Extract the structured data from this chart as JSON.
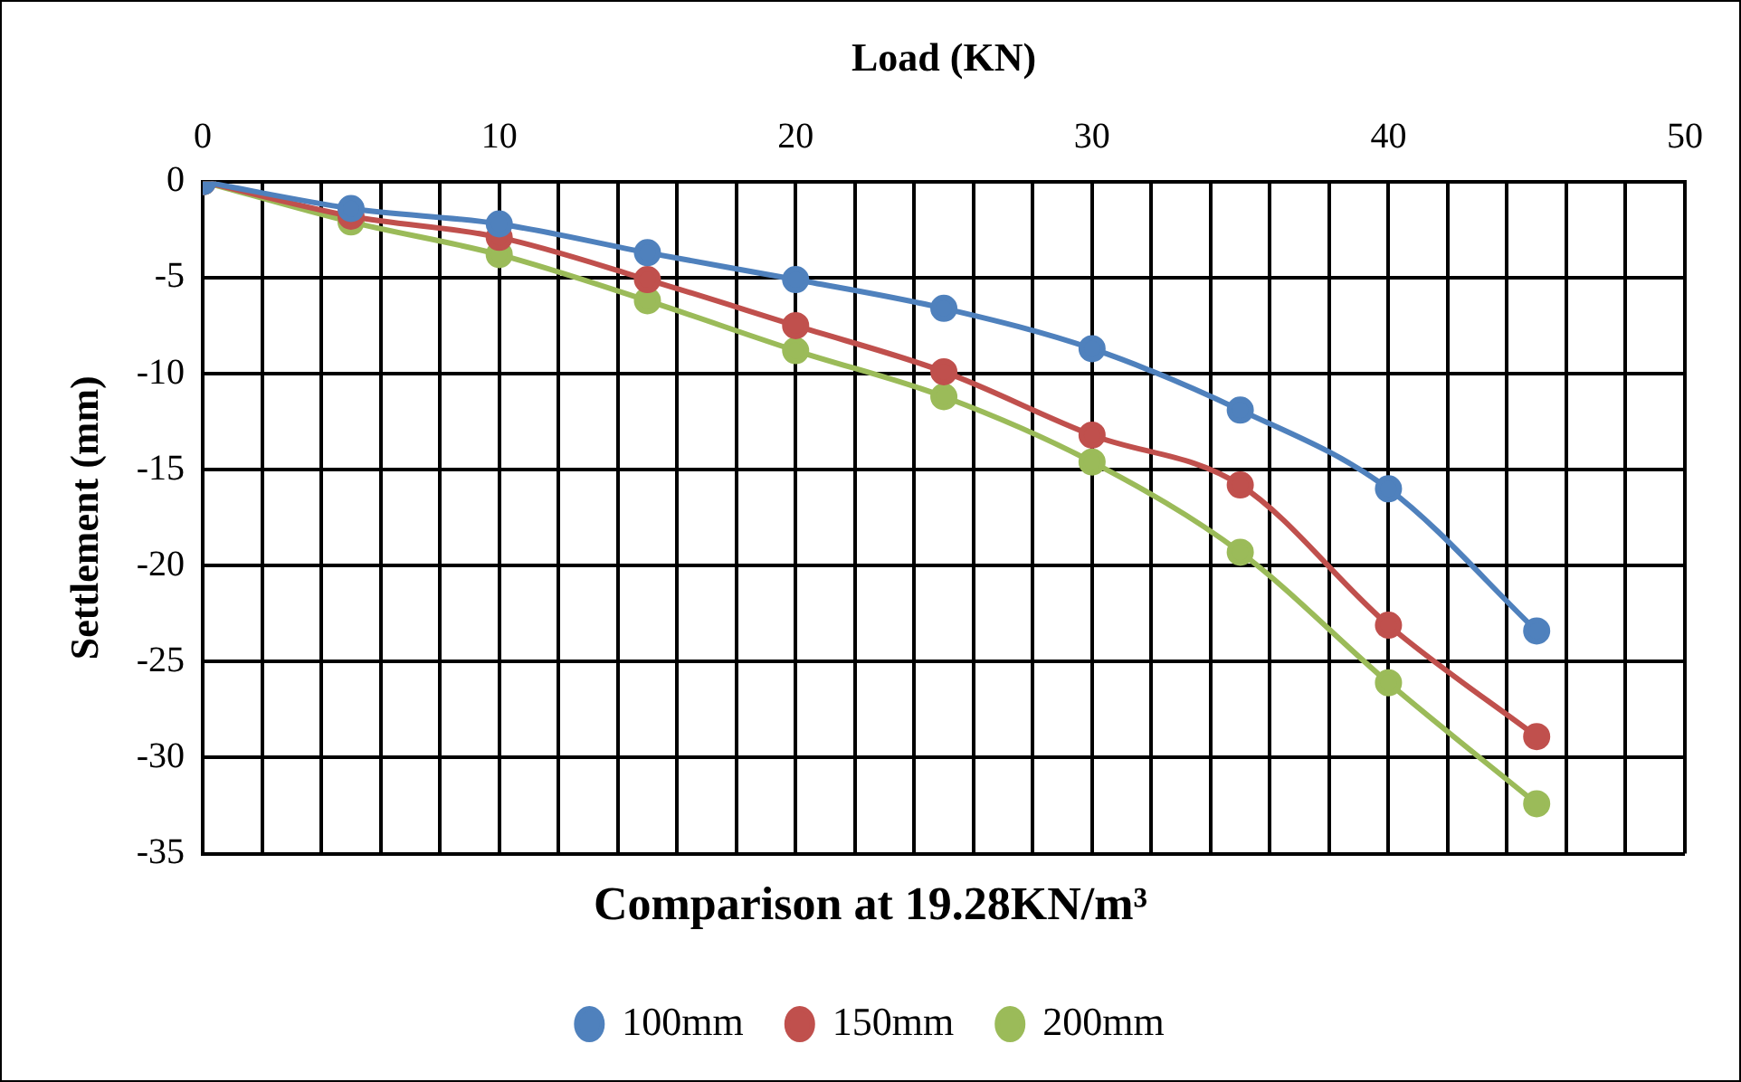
{
  "chart_data": {
    "type": "line",
    "title": "Comparison at 19.28KN/m³",
    "xlabel": "Load (KN)",
    "ylabel": "Settlement (mm)",
    "x": [
      0,
      5,
      10,
      15,
      20,
      25,
      30,
      35,
      40,
      45
    ],
    "series": [
      {
        "name": "100mm",
        "color": "#4f81bd",
        "values": [
          0,
          -1.4,
          -2.2,
          -3.7,
          -5.1,
          -6.6,
          -8.7,
          -11.9,
          -16,
          -23.4
        ]
      },
      {
        "name": "150mm",
        "color": "#c0504d",
        "values": [
          0,
          -1.8,
          -2.9,
          -5.1,
          -7.5,
          -9.9,
          -13.2,
          -15.8,
          -23.1,
          -28.9
        ]
      },
      {
        "name": "200mm",
        "color": "#9bbb59",
        "values": [
          0,
          -2.1,
          -3.8,
          -6.2,
          -8.8,
          -11.2,
          -14.6,
          -19.3,
          -26.1,
          -32.4
        ]
      }
    ],
    "xlim": [
      0,
      50
    ],
    "xticks": [
      0,
      {
        "value": 2,
        "label": null
      },
      {
        "value": 4,
        "label": null
      },
      {
        "value": 6,
        "label": null
      },
      {
        "value": 8,
        "label": null
      },
      10,
      {
        "value": 12,
        "label": null
      },
      {
        "value": 14,
        "label": null
      },
      {
        "value": 16,
        "label": null
      },
      {
        "value": 18,
        "label": null
      },
      20,
      {
        "value": 22,
        "label": null
      },
      {
        "value": 24,
        "label": null
      },
      {
        "value": 26,
        "label": null
      },
      {
        "value": 28,
        "label": null
      },
      30,
      {
        "value": 32,
        "label": null
      },
      {
        "value": 34,
        "label": null
      },
      {
        "value": 36,
        "label": null
      },
      {
        "value": 38,
        "label": null
      },
      40,
      {
        "value": 42,
        "label": null
      },
      {
        "value": 44,
        "label": null
      },
      {
        "value": 46,
        "label": null
      },
      {
        "value": 48,
        "label": null
      },
      50
    ],
    "ylim": [
      -35,
      0
    ],
    "yticks": [
      0,
      -5,
      -10,
      -15,
      -20,
      -25,
      -30,
      -35
    ],
    "grid": true,
    "legend": "bottom",
    "marker": "circle",
    "line_style": "solid"
  }
}
